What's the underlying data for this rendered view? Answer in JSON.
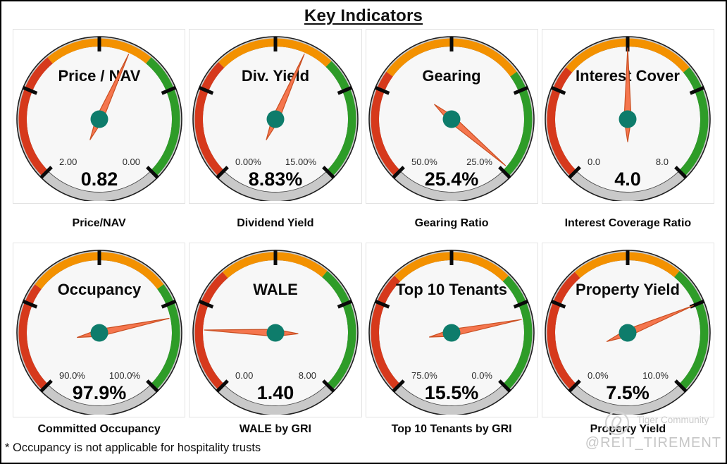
{
  "page": {
    "title": "Key Indicators",
    "footnote": "* Occupancy is not applicable for hospitality trusts"
  },
  "watermark": {
    "logo_icon": "tiger-community-circle-logo",
    "line1": "Tiger Community",
    "line2": "@REIT_TIREMENT"
  },
  "colors": {
    "red": "#D6391C",
    "orange": "#F39100",
    "green": "#2E9C28",
    "rim": "#C9C9C9",
    "rim_edge": "#1f1f1f",
    "face": "#F7F7F7",
    "face_edge": "#4a4a4a",
    "tick": "#0a0a0a",
    "needle": "#F5764E",
    "needle_edge": "#C94F22",
    "hub": "#0E7C6B"
  },
  "chart_data": [
    {
      "type": "gauge",
      "title": "Price / NAV",
      "caption": "Price/NAV",
      "left_label": "2.00",
      "right_label": "0.00",
      "scale_left": 2.0,
      "scale_right": 0.0,
      "value": 0.82,
      "value_label": "0.82",
      "sweep_start_deg": -135,
      "sweep_end_deg": 135,
      "red_end_deg": -40,
      "green_start_deg": 40
    },
    {
      "type": "gauge",
      "title": "Div. Yield",
      "caption": "Dividend Yield",
      "left_label": "0.00%",
      "right_label": "15.00%",
      "scale_left": 0.0,
      "scale_right": 15.0,
      "value": 8.83,
      "value_label": "8.83%",
      "sweep_start_deg": -135,
      "sweep_end_deg": 135,
      "red_end_deg": -45,
      "green_start_deg": 44
    },
    {
      "type": "gauge",
      "title": "Gearing",
      "caption": "Gearing Ratio",
      "left_label": "50.0%",
      "right_label": "25.0%",
      "scale_left": 50.0,
      "scale_right": 25.0,
      "value": 25.4,
      "value_label": "25.4%",
      "sweep_start_deg": -135,
      "sweep_end_deg": 135,
      "red_end_deg": -54,
      "green_start_deg": 54
    },
    {
      "type": "gauge",
      "title": "Interest Cover",
      "caption": "Interest Coverage Ratio",
      "left_label": "0.0",
      "right_label": "8.0",
      "scale_left": 0.0,
      "scale_right": 8.0,
      "value": 4.0,
      "value_label": "4.0",
      "sweep_start_deg": -135,
      "sweep_end_deg": 135,
      "red_end_deg": -50,
      "green_start_deg": 50
    },
    {
      "type": "gauge",
      "title": "Occupancy",
      "caption": "Committed Occupancy",
      "left_label": "90.0%",
      "right_label": "100.0%",
      "scale_left": 90.0,
      "scale_right": 100.0,
      "value": 97.9,
      "value_label": "97.9%",
      "sweep_start_deg": -135,
      "sweep_end_deg": 135,
      "red_end_deg": -53,
      "green_start_deg": 53
    },
    {
      "type": "gauge",
      "title": "WALE",
      "caption": "WALE by GRI",
      "left_label": "0.00",
      "right_label": "8.00",
      "scale_left": 0.0,
      "scale_right": 8.0,
      "value": 1.4,
      "value_label": "1.40",
      "sweep_start_deg": -135,
      "sweep_end_deg": 135,
      "red_end_deg": -41,
      "green_start_deg": 40
    },
    {
      "type": "gauge",
      "title": "Top 10 Tenants",
      "caption": "Top 10 Tenants by GRI",
      "left_label": "75.0%",
      "right_label": "0.0%",
      "scale_left": 75.0,
      "scale_right": 0.0,
      "value": 15.5,
      "value_label": "15.5%",
      "sweep_start_deg": -135,
      "sweep_end_deg": 135,
      "red_end_deg": -45,
      "green_start_deg": 45
    },
    {
      "type": "gauge",
      "title": "Property Yield",
      "caption": "Property Yield",
      "left_label": "0.0%",
      "right_label": "10.0%",
      "scale_left": 0.0,
      "scale_right": 10.0,
      "value": 7.5,
      "value_label": "7.5%",
      "sweep_start_deg": -135,
      "sweep_end_deg": 135,
      "red_end_deg": -41,
      "green_start_deg": 40
    }
  ]
}
